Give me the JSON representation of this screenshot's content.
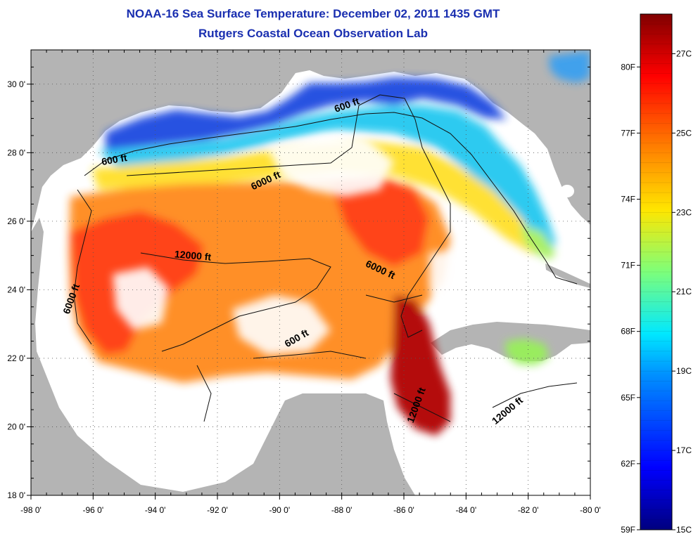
{
  "title": "NOAA-16 Sea Surface Temperature:  December 02, 2011 1435 GMT",
  "subtitle": "Rutgers Coastal Ocean Observation Lab",
  "map": {
    "lon_range": [
      -98,
      -80
    ],
    "lat_range": [
      18,
      31
    ],
    "x_ticks": [
      "-98 0'",
      "-96 0'",
      "-94 0'",
      "-92 0'",
      "-90 0'",
      "-88 0'",
      "-86 0'",
      "-84 0'",
      "-82 0'",
      "-80 0'"
    ],
    "y_ticks": [
      "30 0'",
      "28 0'",
      "26 0'",
      "24 0'",
      "22 0'",
      "20 0'",
      "18 0'"
    ],
    "grid": "dotted",
    "land_color": "#b4b4b4",
    "no_data_color": "#ffffff"
  },
  "contour_labels": [
    {
      "text": "600 ft",
      "lon": -87.8,
      "lat": 29.3
    },
    {
      "text": "600 ft",
      "lon": -95.3,
      "lat": 27.7
    },
    {
      "text": "6000 ft",
      "lon": -90.4,
      "lat": 27.1
    },
    {
      "text": "12000 ft",
      "lon": -92.8,
      "lat": 24.9
    },
    {
      "text": "6000 ft",
      "lon": -96.6,
      "lat": 23.7
    },
    {
      "text": "6000 ft",
      "lon": -86.8,
      "lat": 24.5
    },
    {
      "text": "600 ft",
      "lon": -89.4,
      "lat": 22.5
    },
    {
      "text": "12000 ft",
      "lon": -85.5,
      "lat": 20.6
    },
    {
      "text": "12000 ft",
      "lon": -82.6,
      "lat": 20.4
    }
  ],
  "colorbar": {
    "celsius_range": [
      15,
      28
    ],
    "fahrenheit_labels": [
      "80F",
      "77F",
      "74F",
      "71F",
      "68F",
      "65F",
      "62F",
      "59F"
    ],
    "celsius_labels": [
      "27C",
      "25C",
      "23C",
      "21C",
      "19C",
      "17C",
      "15C"
    ]
  }
}
